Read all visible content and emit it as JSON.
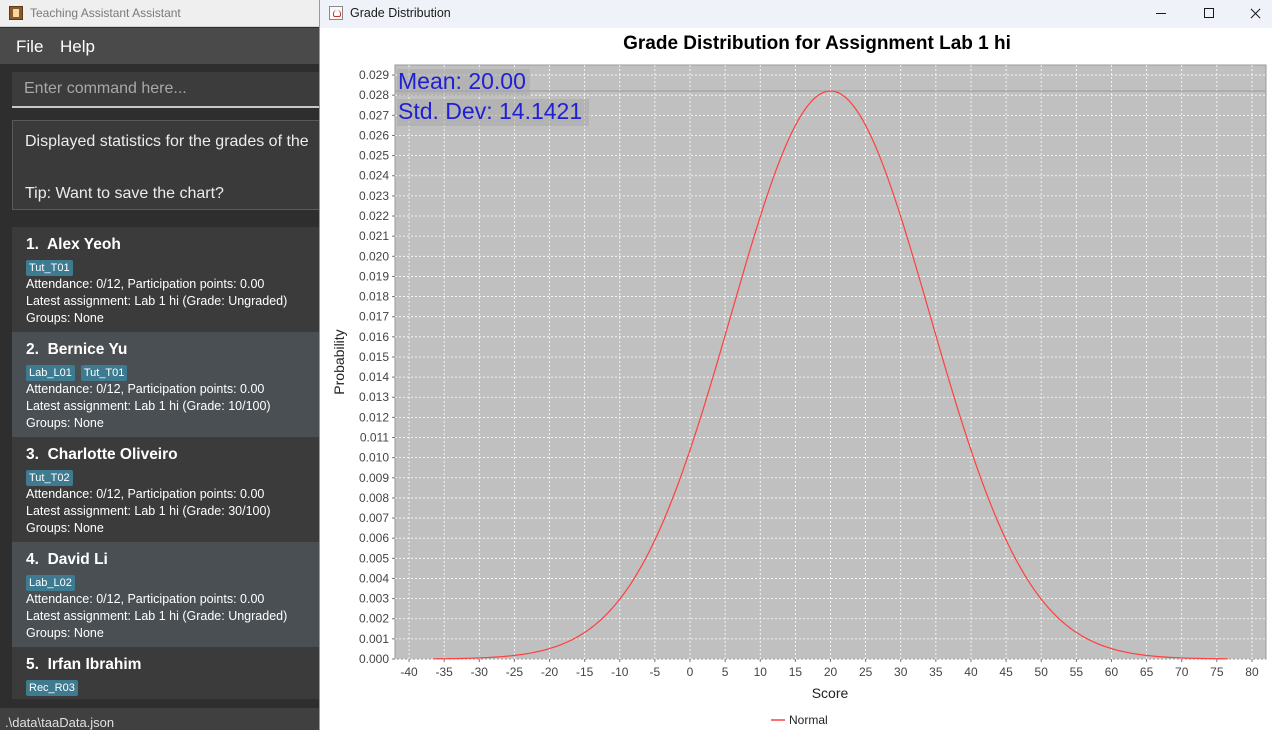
{
  "app": {
    "title": "Teaching Assistant Assistant",
    "menu": [
      "File",
      "Help"
    ],
    "command_placeholder": "Enter command here...",
    "result_lines": [
      "Displayed statistics for the grades of the",
      "Tip: Want to save the chart?"
    ],
    "students": [
      {
        "index": "1.",
        "name": "Alex Yeoh",
        "tags": [
          "Tut_T01"
        ],
        "attendance": "Attendance: 0/12, Participation points: 0.00",
        "assignment": "Latest assignment: Lab 1 hi (Grade: Ungraded)",
        "groups": "Groups: None"
      },
      {
        "index": "2.",
        "name": "Bernice Yu",
        "tags": [
          "Lab_L01",
          "Tut_T01"
        ],
        "attendance": "Attendance: 0/12, Participation points: 0.00",
        "assignment": "Latest assignment: Lab 1 hi (Grade: 10/100)",
        "groups": "Groups: None"
      },
      {
        "index": "3.",
        "name": "Charlotte Oliveiro",
        "tags": [
          "Tut_T02"
        ],
        "attendance": "Attendance: 0/12, Participation points: 0.00",
        "assignment": "Latest assignment: Lab 1 hi (Grade: 30/100)",
        "groups": "Groups: None"
      },
      {
        "index": "4.",
        "name": "David Li",
        "tags": [
          "Lab_L02"
        ],
        "attendance": "Attendance: 0/12, Participation points: 0.00",
        "assignment": "Latest assignment: Lab 1 hi (Grade: Ungraded)",
        "groups": "Groups: None"
      },
      {
        "index": "5.",
        "name": "Irfan Ibrahim",
        "tags": [
          "Rec_R03"
        ],
        "attendance": "",
        "assignment": "",
        "groups": ""
      }
    ],
    "status_path": ".\\data\\taaData.json"
  },
  "chart_window": {
    "title": "Grade Distribution",
    "buttons": {
      "minimize": "minimize",
      "maximize": "maximize",
      "close": "close"
    }
  },
  "chart_data": {
    "type": "line",
    "title": "Grade Distribution for Assignment Lab 1 hi",
    "xlabel": "Score",
    "ylabel": "Probability",
    "xlim": [
      -42,
      82
    ],
    "ylim": [
      0,
      0.0295
    ],
    "x_ticks": [
      -40,
      -35,
      -30,
      -25,
      -20,
      -15,
      -10,
      -5,
      0,
      5,
      10,
      15,
      20,
      25,
      30,
      35,
      40,
      45,
      50,
      55,
      60,
      65,
      70,
      75,
      80
    ],
    "y_ticks": [
      "0.000",
      "0.001",
      "0.002",
      "0.003",
      "0.004",
      "0.005",
      "0.006",
      "0.007",
      "0.008",
      "0.009",
      "0.010",
      "0.011",
      "0.012",
      "0.013",
      "0.014",
      "0.015",
      "0.016",
      "0.017",
      "0.018",
      "0.019",
      "0.020",
      "0.021",
      "0.022",
      "0.023",
      "0.024",
      "0.025",
      "0.026",
      "0.027",
      "0.028",
      "0.029"
    ],
    "series": [
      {
        "name": "Normal",
        "distribution": "normal",
        "mean": 20.0,
        "std_dev": 14.1421,
        "x_range": [
          -36.57,
          76.57
        ],
        "color": "#ff4040"
      }
    ],
    "annotations": [
      "Mean: 20.00",
      "Std. Dev: 14.1421"
    ],
    "legend_position": "bottom",
    "grid": true,
    "colors": {
      "plot_background": "#c0c0c0",
      "gridline": "#ffffff",
      "annotation_text": "#1f1fd6"
    }
  }
}
